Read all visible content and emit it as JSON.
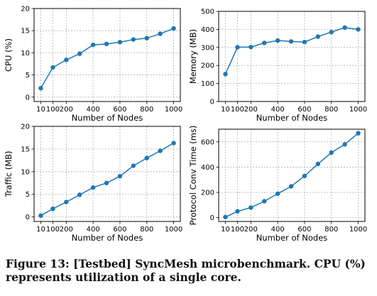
{
  "chart_data": [
    {
      "type": "line",
      "xlabel": "Number of Nodes",
      "ylabel": "CPU (%)",
      "x": [
        10,
        100,
        200,
        300,
        400,
        500,
        600,
        700,
        800,
        900,
        1000
      ],
      "series": [
        {
          "values": [
            2.0,
            6.7,
            8.4,
            9.8,
            11.8,
            12.0,
            12.4,
            13.0,
            13.3,
            14.3,
            15.5
          ]
        }
      ],
      "xticks": [
        10,
        100,
        200,
        400,
        600,
        800,
        1000
      ],
      "xlim": [
        -40,
        1050
      ],
      "ylim": [
        -1,
        20
      ],
      "yticks": [
        0,
        5,
        10,
        15,
        20
      ],
      "grid": true,
      "color": "#1f77b4"
    },
    {
      "type": "line",
      "xlabel": "Number of Nodes",
      "ylabel": "Memory (MB)",
      "x": [
        10,
        100,
        200,
        300,
        400,
        500,
        600,
        700,
        800,
        900,
        1000
      ],
      "series": [
        {
          "values": [
            152,
            301,
            302,
            325,
            338,
            333,
            330,
            360,
            385,
            410,
            400
          ]
        }
      ],
      "xticks": [
        10,
        100,
        200,
        400,
        600,
        800,
        1000
      ],
      "xlim": [
        -40,
        1050
      ],
      "ylim": [
        0,
        500
      ],
      "yticks": [
        0,
        100,
        200,
        300,
        400,
        500
      ],
      "grid": true,
      "color": "#1f77b4"
    },
    {
      "type": "line",
      "xlabel": "Number of Nodes",
      "ylabel": "Traffic (MB)",
      "x": [
        10,
        100,
        200,
        300,
        400,
        500,
        600,
        700,
        800,
        900,
        1000
      ],
      "series": [
        {
          "values": [
            0.3,
            1.8,
            3.3,
            4.9,
            6.5,
            7.5,
            9.0,
            11.3,
            13.0,
            14.6,
            16.3
          ]
        }
      ],
      "xticks": [
        10,
        100,
        200,
        400,
        600,
        800,
        1000
      ],
      "xlim": [
        -40,
        1050
      ],
      "ylim": [
        -1,
        20
      ],
      "yticks": [
        0,
        5,
        10,
        15,
        20
      ],
      "grid": true,
      "color": "#1f77b4"
    },
    {
      "type": "line",
      "xlabel": "Number of Nodes",
      "ylabel": "Protocol Conv Time (ms)",
      "x": [
        10,
        100,
        200,
        300,
        400,
        500,
        600,
        700,
        800,
        900,
        1000
      ],
      "series": [
        {
          "values": [
            5,
            50,
            80,
            130,
            190,
            248,
            330,
            425,
            515,
            580,
            668
          ]
        }
      ],
      "xticks": [
        10,
        100,
        200,
        400,
        600,
        800,
        1000
      ],
      "xlim": [
        -40,
        1050
      ],
      "ylim": [
        -30,
        700
      ],
      "yticks": [
        0,
        200,
        400,
        600
      ],
      "grid": true,
      "color": "#1f77b4"
    }
  ],
  "caption": "Figure 13: [Testbed] SyncMesh microbenchmark. CPU (%) represents utilization of a single core."
}
